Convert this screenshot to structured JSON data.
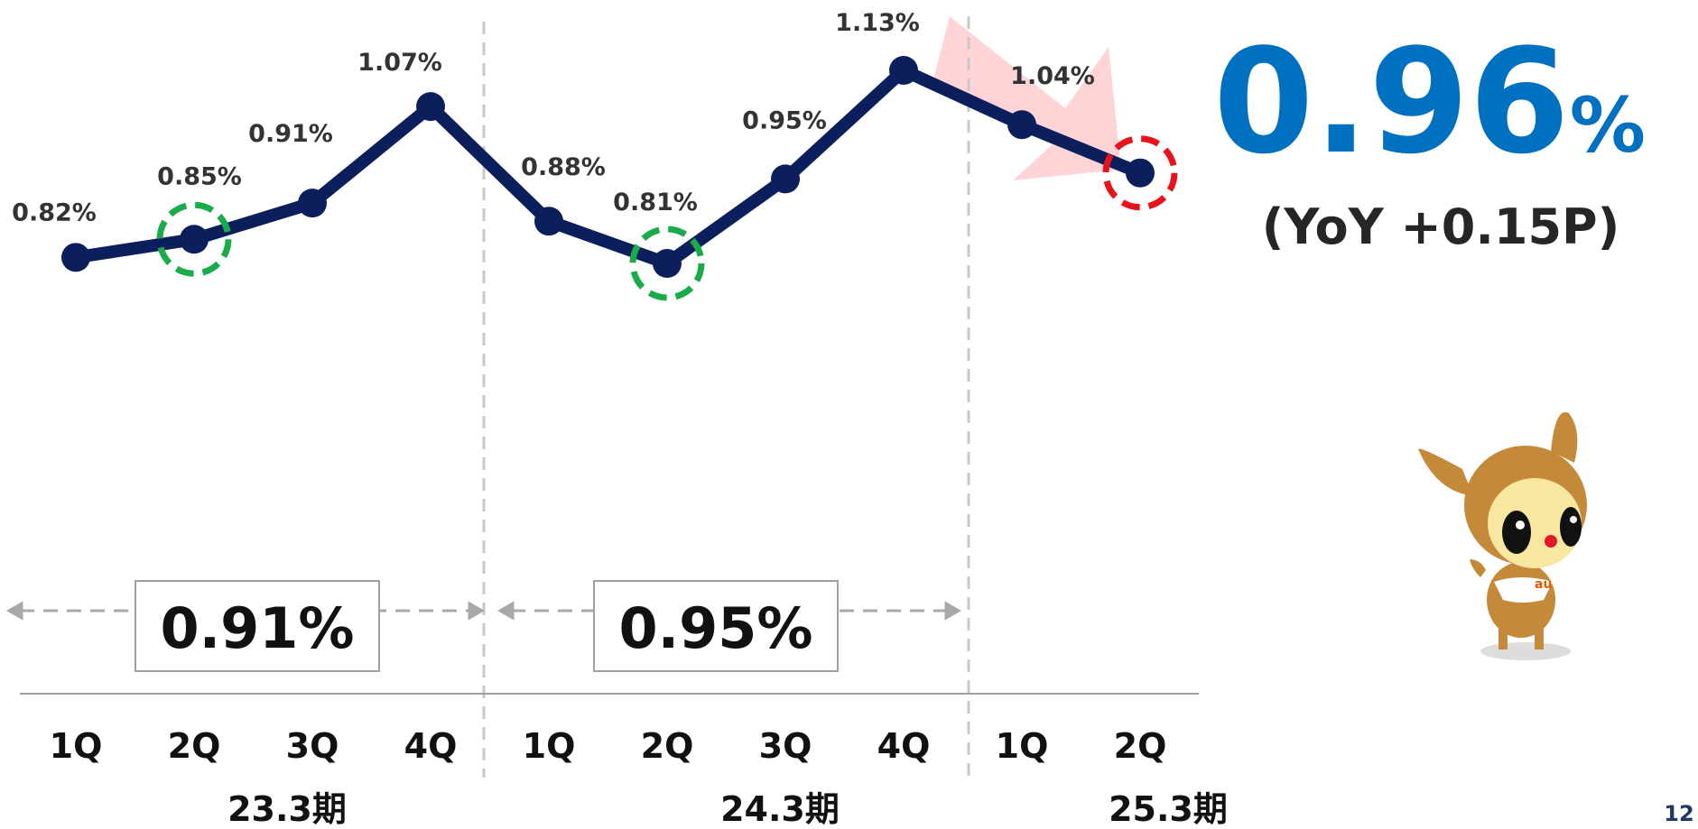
{
  "chart_data": {
    "type": "line",
    "categories": [
      "1Q",
      "2Q",
      "3Q",
      "4Q",
      "1Q",
      "2Q",
      "3Q",
      "4Q",
      "1Q",
      "2Q"
    ],
    "values": [
      0.82,
      0.85,
      0.91,
      1.07,
      0.88,
      0.81,
      0.95,
      1.13,
      1.04,
      0.96
    ],
    "value_labels": [
      "0.82%",
      "0.85%",
      "0.91%",
      "1.07%",
      "0.88%",
      "0.81%",
      "0.95%",
      "1.13%",
      "1.04%",
      "0.96%"
    ],
    "color": "#0b1f5c",
    "groups": [
      "23.3期",
      "24.3期",
      "25.3期"
    ],
    "period_averages": [
      "0.91%",
      "0.95%"
    ],
    "highlights": [
      {
        "index": 1,
        "color": "#1aab4a"
      },
      {
        "index": 5,
        "color": "#1aab4a"
      },
      {
        "index": 9,
        "color": "#e8121b"
      }
    ],
    "headline": {
      "value": "0.96",
      "unit": "%",
      "color": "#0070c0"
    },
    "yoy": "(YoY +0.15P)",
    "page_number": "12"
  }
}
